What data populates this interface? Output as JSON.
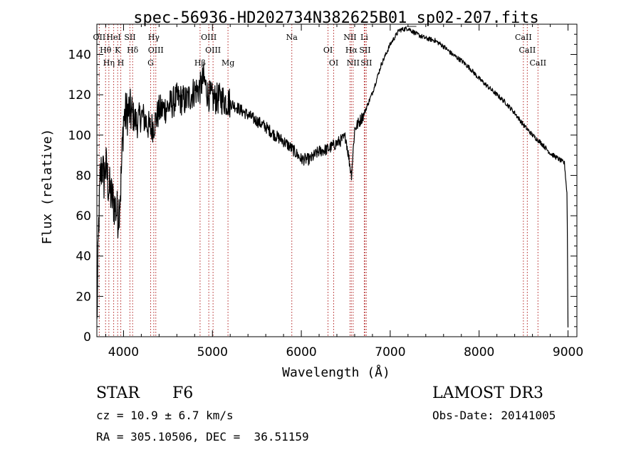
{
  "chart_data": {
    "type": "line",
    "title": "spec-56936-HD202734N382625B01_sp02-207.fits",
    "xlabel": "Wavelength (Å)",
    "ylabel": "Flux (relative)",
    "xlim": [
      3700,
      9100
    ],
    "ylim": [
      0,
      155
    ],
    "x_ticks": [
      4000,
      5000,
      6000,
      7000,
      8000,
      9000
    ],
    "y_ticks": [
      0,
      20,
      40,
      60,
      80,
      100,
      120,
      140
    ],
    "grid": false,
    "series": [
      {
        "name": "flux",
        "x": [
          3700,
          3720,
          3740,
          3760,
          3780,
          3800,
          3830,
          3860,
          3900,
          3940,
          3970,
          4000,
          4050,
          4100,
          4150,
          4200,
          4250,
          4300,
          4340,
          4400,
          4500,
          4600,
          4700,
          4800,
          4860,
          4900,
          4950,
          5000,
          5100,
          5200,
          5300,
          5400,
          5500,
          5600,
          5700,
          5800,
          5900,
          6000,
          6100,
          6200,
          6300,
          6400,
          6500,
          6563,
          6600,
          6700,
          6800,
          6900,
          7000,
          7100,
          7200,
          7300,
          7400,
          7500,
          7600,
          7700,
          7800,
          7900,
          8000,
          8100,
          8200,
          8300,
          8400,
          8500,
          8600,
          8700,
          8800,
          8900,
          8960,
          8990,
          9000
        ],
        "y": [
          5,
          55,
          80,
          85,
          78,
          85,
          75,
          70,
          65,
          60,
          75,
          108,
          112,
          110,
          106,
          110,
          107,
          103,
          105,
          112,
          114,
          118,
          117,
          122,
          123,
          128,
          120,
          118,
          118,
          116,
          113,
          110,
          107,
          104,
          100,
          97,
          93,
          88,
          88,
          92,
          93,
          96,
          99,
          80,
          103,
          110,
          121,
          135,
          145,
          152,
          153,
          150,
          148,
          147,
          144,
          140,
          137,
          133,
          128,
          124,
          120,
          116,
          111,
          105,
          100,
          96,
          91,
          88,
          86,
          70,
          5
        ]
      }
    ],
    "lines": [
      {
        "label": "Hθ",
        "x": 3798
      },
      {
        "label": "OII",
        "x": 3727
      },
      {
        "label": "Hη",
        "x": 3835
      },
      {
        "label": "K",
        "x": 3934
      },
      {
        "label": "H",
        "x": 3969
      },
      {
        "label": "HeI",
        "x": 3889
      },
      {
        "label": "Hδ",
        "x": 4102
      },
      {
        "label": "SII",
        "x": 4072
      },
      {
        "label": "OIII",
        "x": 4363
      },
      {
        "label": "Hγ",
        "x": 4340
      },
      {
        "label": "G",
        "x": 4305
      },
      {
        "label": "Hβ",
        "x": 4861
      },
      {
        "label": "OIII",
        "x": 4959
      },
      {
        "label": "OIII",
        "x": 5007
      },
      {
        "label": "Mg",
        "x": 5175
      },
      {
        "label": "Na",
        "x": 5893
      },
      {
        "label": "OI",
        "x": 6300
      },
      {
        "label": "OI",
        "x": 6364
      },
      {
        "label": "NII",
        "x": 6548
      },
      {
        "label": "Hα",
        "x": 6563
      },
      {
        "label": "NII",
        "x": 6583
      },
      {
        "label": "SII",
        "x": 6716
      },
      {
        "label": "Li",
        "x": 6708
      },
      {
        "label": "SII",
        "x": 6731
      },
      {
        "label": "CaII",
        "x": 8498
      },
      {
        "label": "CaII",
        "x": 8542
      },
      {
        "label": "CaII",
        "x": 8662
      }
    ]
  },
  "info": {
    "class_type": "STAR",
    "subclass": "F6",
    "survey": "LAMOST DR3",
    "cz": "cz = 10.9 ± 6.7 km/s",
    "obs_date": "Obs-Date: 20141005",
    "coords": "RA = 305.10506, DEC =  36.51159"
  },
  "colors": {
    "spectrum": "#000000",
    "marker_line": "#b22222",
    "axis": "#000000"
  }
}
